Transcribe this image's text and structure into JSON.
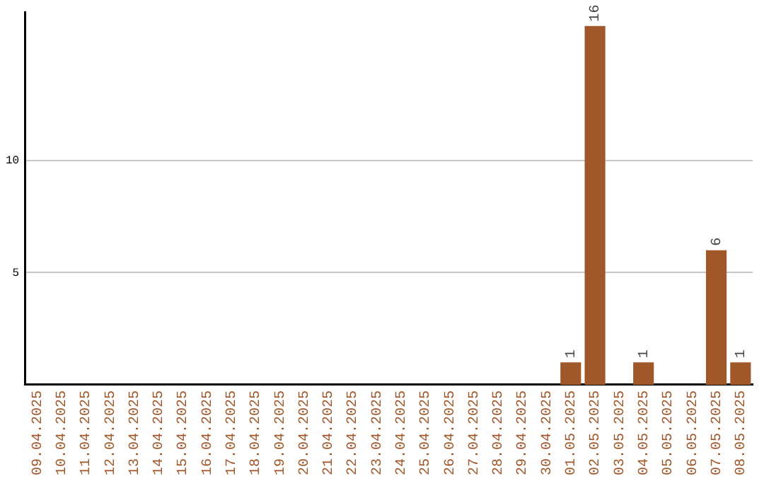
{
  "chart_data": {
    "type": "bar",
    "categories": [
      "09.04.2025",
      "10.04.2025",
      "11.04.2025",
      "12.04.2025",
      "13.04.2025",
      "14.04.2025",
      "15.04.2025",
      "16.04.2025",
      "17.04.2025",
      "18.04.2025",
      "19.04.2025",
      "20.04.2025",
      "21.04.2025",
      "22.04.2025",
      "23.04.2025",
      "24.04.2025",
      "25.04.2025",
      "26.04.2025",
      "27.04.2025",
      "28.04.2025",
      "29.04.2025",
      "30.04.2025",
      "01.05.2025",
      "02.05.2025",
      "03.05.2025",
      "04.05.2025",
      "05.05.2025",
      "06.05.2025",
      "07.05.2025",
      "08.05.2025"
    ],
    "values": [
      0,
      0,
      0,
      0,
      0,
      0,
      0,
      0,
      0,
      0,
      0,
      0,
      0,
      0,
      0,
      0,
      0,
      0,
      0,
      0,
      0,
      0,
      1,
      16,
      0,
      1,
      0,
      0,
      6,
      1
    ],
    "value_labels": [
      null,
      null,
      null,
      null,
      null,
      null,
      null,
      null,
      null,
      null,
      null,
      null,
      null,
      null,
      null,
      null,
      null,
      null,
      null,
      null,
      null,
      null,
      "1",
      "16",
      null,
      "1",
      null,
      null,
      "6",
      "1"
    ],
    "color": "#a0572a",
    "ylim": [
      0,
      16.6
    ],
    "yticks": [
      5,
      10
    ],
    "grid": "y",
    "legend": false
  }
}
